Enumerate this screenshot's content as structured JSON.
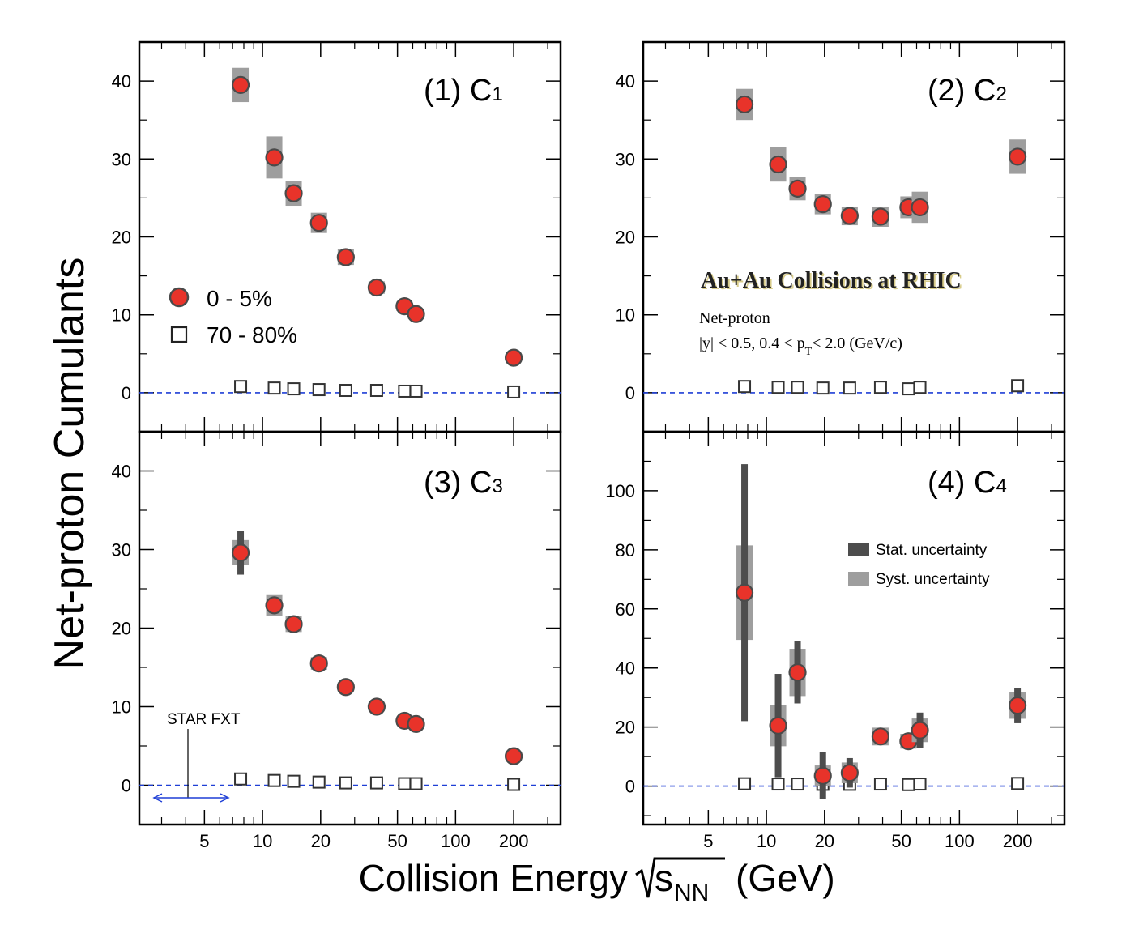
{
  "figure": {
    "ylabel": "Net-proton Cumulants",
    "xlabel_main": "Collision Energy",
    "xlabel_s": "s",
    "xlabel_sub": "NN",
    "xlabel_unit": "(GeV)",
    "x_scale": "log",
    "xlim": [
      2.3,
      350
    ],
    "x_ticks": [
      5,
      10,
      20,
      50,
      100,
      200
    ],
    "colors": {
      "central": "#e8332a",
      "central_edge": "#4a4a4a",
      "stat": "#4d4d4d",
      "syst": "#9e9e9e",
      "baseline": "#1f3fd6",
      "fxt_arrow": "#1f3fd6"
    }
  },
  "legend_centrality": {
    "central_label": "0 - 5%",
    "peripheral_label": "70 - 80%"
  },
  "legend_uncertainty": {
    "stat_label": "Stat. uncertainty",
    "syst_label": "Syst. uncertainty"
  },
  "annotation": {
    "title": "Au+Au Collisions at RHIC",
    "line1": "Net-proton",
    "line2_a": "|y| < 0.5,   0.4 < p",
    "line2_sub": "T",
    "line2_b": "< 2.0 (GeV/c)",
    "fxt_label": "STAR FXT"
  },
  "chart_data": [
    {
      "type": "scatter",
      "title": "(1) C",
      "title_sub": "1",
      "ylim": [
        -5,
        45
      ],
      "y_ticks": [
        0,
        10,
        20,
        30,
        40
      ],
      "series": [
        {
          "name": "0 - 5%",
          "x": [
            7.7,
            11.5,
            14.5,
            19.6,
            27,
            39,
            54.4,
            62.4,
            200
          ],
          "y": [
            39.5,
            30.2,
            25.6,
            21.8,
            17.4,
            13.5,
            11.1,
            10.1,
            4.5
          ],
          "stat": [
            0.2,
            0.2,
            0.2,
            0.1,
            0.1,
            0.1,
            0.1,
            0.1,
            0.1
          ],
          "syst": [
            2.2,
            2.7,
            1.6,
            1.3,
            1.0,
            0.8,
            0.6,
            0.6,
            0.5
          ]
        },
        {
          "name": "70 - 80%",
          "x": [
            7.7,
            11.5,
            14.5,
            19.6,
            27,
            39,
            54.4,
            62.4,
            200
          ],
          "y": [
            0.8,
            0.6,
            0.5,
            0.4,
            0.3,
            0.3,
            0.2,
            0.2,
            0.1
          ],
          "stat": [
            0,
            0,
            0,
            0,
            0,
            0,
            0,
            0,
            0
          ],
          "syst": [
            0,
            0,
            0,
            0,
            0,
            0,
            0,
            0,
            0
          ]
        }
      ]
    },
    {
      "type": "scatter",
      "title": "(2) C",
      "title_sub": "2",
      "ylim": [
        -5,
        45
      ],
      "y_ticks": [
        0,
        10,
        20,
        30,
        40
      ],
      "series": [
        {
          "name": "0 - 5%",
          "x": [
            7.7,
            11.5,
            14.5,
            19.6,
            27,
            39,
            54.4,
            62.4,
            200
          ],
          "y": [
            37.0,
            29.3,
            26.2,
            24.2,
            22.7,
            22.6,
            23.8,
            23.8,
            30.3
          ],
          "stat": [
            0.2,
            0.2,
            0.2,
            0.1,
            0.1,
            0.1,
            0.1,
            0.1,
            0.1
          ],
          "syst": [
            2.0,
            2.2,
            1.5,
            1.3,
            1.2,
            1.3,
            1.4,
            2.0,
            2.2
          ]
        },
        {
          "name": "70 - 80%",
          "x": [
            7.7,
            11.5,
            14.5,
            19.6,
            27,
            39,
            54.4,
            62.4,
            200
          ],
          "y": [
            0.8,
            0.7,
            0.7,
            0.6,
            0.6,
            0.7,
            0.5,
            0.7,
            0.9
          ],
          "stat": [
            0,
            0,
            0,
            0,
            0,
            0,
            0,
            0,
            0
          ],
          "syst": [
            0,
            0,
            0,
            0,
            0,
            0,
            0,
            0,
            0
          ]
        }
      ]
    },
    {
      "type": "scatter",
      "title": "(3) C",
      "title_sub": "3",
      "ylim": [
        -5,
        45
      ],
      "y_ticks": [
        0,
        10,
        20,
        30,
        40
      ],
      "series": [
        {
          "name": "0 - 5%",
          "x": [
            7.7,
            11.5,
            14.5,
            19.6,
            27,
            39,
            54.4,
            62.4,
            200
          ],
          "y": [
            29.6,
            22.9,
            20.5,
            15.5,
            12.5,
            10.0,
            8.2,
            7.8,
            3.7
          ],
          "stat": [
            2.8,
            0.8,
            0.5,
            0.4,
            0.3,
            0.3,
            0.3,
            0.2,
            0.3
          ],
          "syst": [
            1.6,
            1.3,
            1.0,
            0.8,
            0.6,
            0.5,
            0.5,
            0.4,
            0.3
          ]
        },
        {
          "name": "70 - 80%",
          "x": [
            7.7,
            11.5,
            14.5,
            19.6,
            27,
            39,
            54.4,
            62.4,
            200
          ],
          "y": [
            0.8,
            0.6,
            0.5,
            0.4,
            0.3,
            0.3,
            0.2,
            0.2,
            0.1
          ],
          "stat": [
            0,
            0,
            0,
            0,
            0,
            0,
            0,
            0,
            0
          ],
          "syst": [
            0,
            0,
            0,
            0,
            0,
            0,
            0,
            0,
            0
          ]
        }
      ]
    },
    {
      "type": "scatter",
      "title": "(4) C",
      "title_sub": "4",
      "ylim": [
        -13,
        120
      ],
      "y_ticks": [
        0,
        20,
        40,
        60,
        80,
        100
      ],
      "series": [
        {
          "name": "0 - 5%",
          "x": [
            7.7,
            11.5,
            14.5,
            19.6,
            27,
            39,
            54.4,
            62.4,
            200
          ],
          "y": [
            65.5,
            20.5,
            38.5,
            3.5,
            4.5,
            16.8,
            15.2,
            18.9,
            27.3
          ],
          "stat": [
            43.5,
            17.5,
            10.5,
            8.0,
            5.0,
            2.0,
            2.0,
            6.0,
            6.0
          ],
          "syst": [
            16.0,
            7.0,
            8.0,
            3.5,
            3.5,
            3.0,
            2.5,
            4.0,
            4.5
          ]
        },
        {
          "name": "70 - 80%",
          "x": [
            7.7,
            11.5,
            14.5,
            19.6,
            27,
            39,
            54.4,
            62.4,
            200
          ],
          "y": [
            0.8,
            0.7,
            0.7,
            0.6,
            0.6,
            0.7,
            0.5,
            0.7,
            0.9
          ],
          "stat": [
            0,
            0,
            0,
            0,
            0,
            0,
            0,
            0,
            0
          ],
          "syst": [
            0,
            0,
            0,
            0,
            0,
            0,
            0,
            0,
            0
          ]
        }
      ]
    }
  ]
}
